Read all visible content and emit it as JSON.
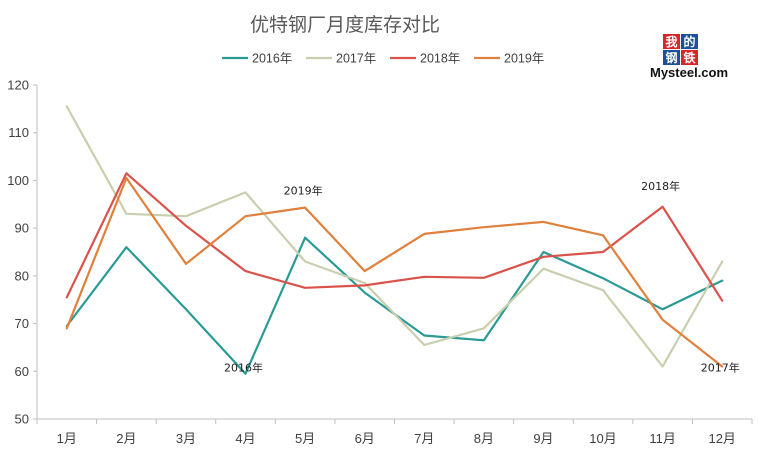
{
  "logo": {
    "cjk": [
      "我",
      "的",
      "钢",
      "铁"
    ],
    "text": "Mysteel.com",
    "colors": {
      "red": "#d7262b",
      "blue": "#1d4f9c"
    }
  },
  "chart_data": {
    "type": "line",
    "title": "优特钢厂月度库存对比",
    "categories": [
      "1月",
      "2月",
      "3月",
      "4月",
      "5月",
      "6月",
      "7月",
      "8月",
      "9月",
      "10月",
      "11月",
      "12月"
    ],
    "ylim": [
      50,
      120
    ],
    "yticks": [
      50,
      60,
      70,
      80,
      90,
      100,
      110,
      120
    ],
    "grid": false,
    "legend_position": "top",
    "series": [
      {
        "name": "2016年",
        "color": "#2a9a94",
        "values": [
          69.5,
          86,
          73,
          59.5,
          88,
          76.5,
          67.5,
          66.5,
          85,
          79.5,
          73,
          79
        ]
      },
      {
        "name": "2017年",
        "color": "#c8cfae",
        "values": [
          115.5,
          93,
          92.5,
          97.5,
          83,
          78.5,
          65.5,
          69,
          81.5,
          77,
          61,
          83
        ]
      },
      {
        "name": "2018年",
        "color": "#d9534a",
        "values": [
          75.5,
          101.5,
          90.5,
          81,
          77.5,
          78,
          79.8,
          79.6,
          84,
          85,
          94.5,
          74.8
        ]
      },
      {
        "name": "2019年",
        "color": "#e0803d",
        "values": [
          69,
          100.5,
          82.5,
          92.5,
          94.3,
          81,
          88.8,
          90.2,
          91.3,
          88.5,
          70.8,
          61
        ]
      }
    ],
    "annotations": [
      {
        "text": "2019年",
        "x": "5月",
        "y": 97
      },
      {
        "text": "2016年",
        "x": "4月",
        "y": 60
      },
      {
        "text": "2018年",
        "x": "11月",
        "y": 98
      },
      {
        "text": "2017年",
        "x": "12月",
        "y": 60
      }
    ]
  }
}
